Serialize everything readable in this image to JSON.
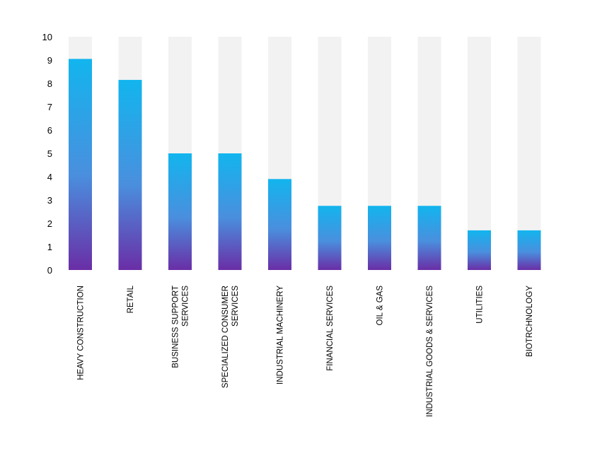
{
  "chart_data": {
    "type": "bar",
    "stacked_background": true,
    "categories": [
      [
        "HEAVY CONSTRUCTION"
      ],
      [
        "RETAIL"
      ],
      [
        "BUSINESS SUPPORT",
        "SERVICES"
      ],
      [
        "SPECIALIZED CONSUMER",
        "SERVICES"
      ],
      [
        "INDUSTRIAL MACHINERY"
      ],
      [
        "FINANCIAL SERVICES"
      ],
      [
        "OIL & GAS"
      ],
      [
        "INDUSTRIAL GOODS & SERVICES"
      ],
      [
        "UTILITIES"
      ],
      [
        "BIOTRCHNOLOGY"
      ]
    ],
    "values": [
      9.05,
      8.15,
      5.0,
      5.0,
      3.9,
      2.75,
      2.75,
      2.75,
      1.7,
      1.7
    ],
    "background_value": 10,
    "ylim": [
      0,
      10
    ],
    "yticks": [
      "0",
      "1",
      "2",
      "3",
      "4",
      "5",
      "6",
      "7",
      "8",
      "9",
      "10"
    ],
    "grid": false,
    "legend": "none",
    "colors": {
      "bar_top": "#12b5ee",
      "bar_bottom": "#6a2ea6",
      "background_bar": "#f2f2f2"
    }
  }
}
